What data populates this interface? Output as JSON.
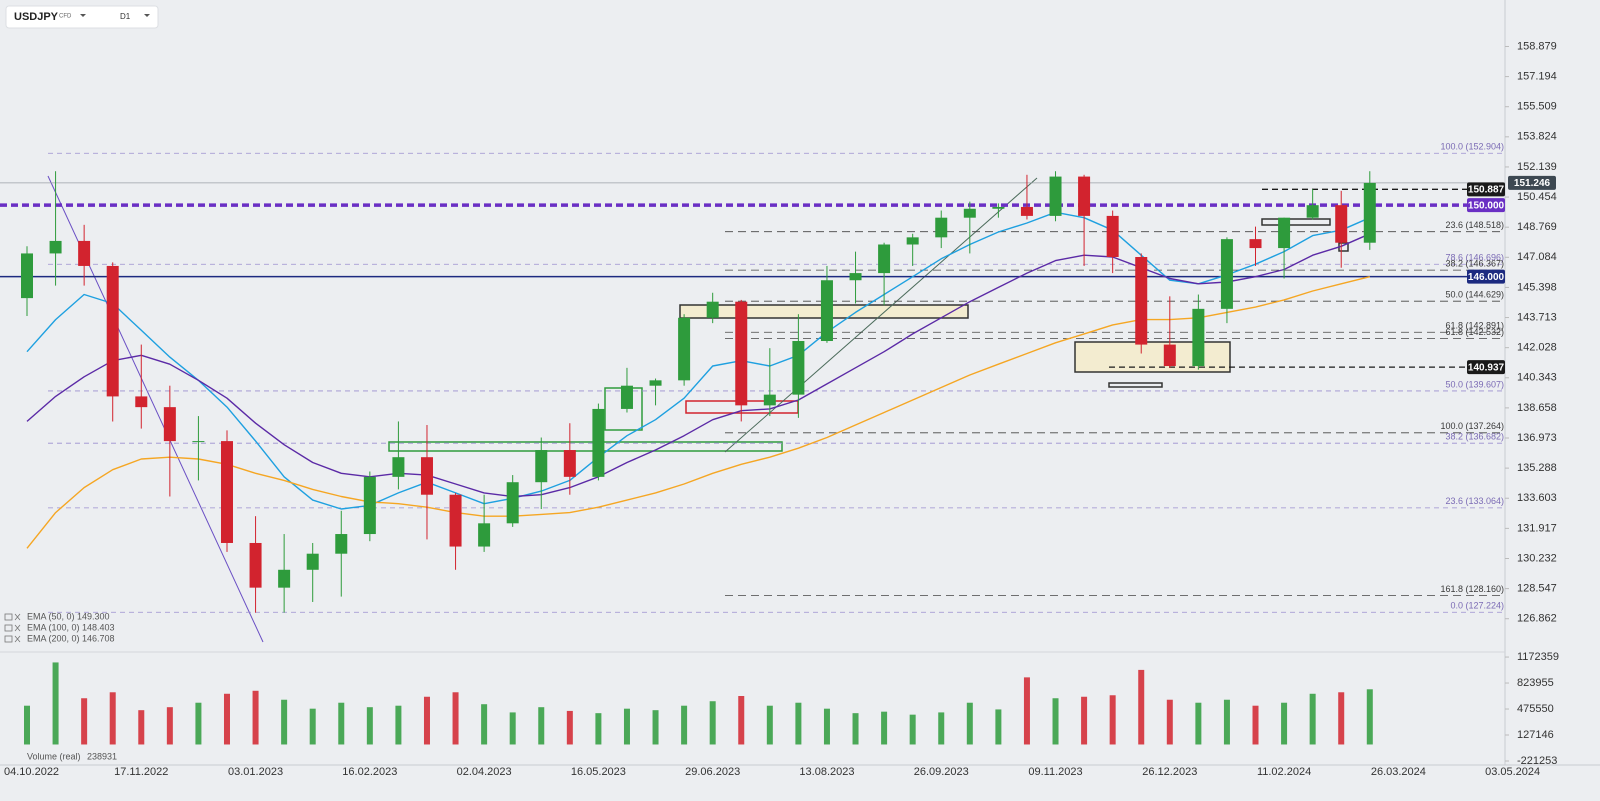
{
  "header": {
    "symbol": "USDJPY",
    "instrument_type": "CFD",
    "timeframe": "D1"
  },
  "chart_data": {
    "type": "candlestick",
    "categories": [
      "04.10.2022",
      null,
      null,
      null,
      "17.11.2022",
      null,
      null,
      null,
      "03.01.2023",
      null,
      null,
      null,
      "16.02.2023",
      null,
      null,
      null,
      "02.04.2023",
      null,
      null,
      null,
      "16.05.2023",
      null,
      null,
      null,
      "29.06.2023",
      null,
      null,
      null,
      "13.08.2023",
      null,
      null,
      null,
      "26.09.2023",
      null,
      null,
      null,
      "09.11.2023",
      null,
      null,
      null,
      "26.12.2023",
      null,
      null,
      null,
      "11.02.2024",
      null,
      null,
      null,
      "26.03.2024",
      null,
      null,
      null,
      "03.05.2024"
    ],
    "open": [
      144.8,
      147.3,
      148.0,
      146.6,
      139.3,
      138.7,
      136.8,
      136.8,
      131.1,
      128.6,
      129.6,
      130.5,
      131.6,
      134.8,
      135.9,
      133.8,
      130.9,
      132.2,
      134.5,
      136.3,
      134.8,
      138.6,
      139.9,
      140.2,
      143.7,
      144.6,
      138.8,
      139.4,
      142.4,
      145.8,
      146.2,
      147.8,
      148.2,
      149.3,
      149.8,
      149.9,
      149.4,
      151.6,
      149.4,
      147.1,
      142.2,
      141.0,
      144.2,
      148.1,
      147.6,
      149.3,
      150.0,
      147.9,
      null,
      null,
      null,
      null,
      null
    ],
    "high": [
      147.7,
      151.9,
      148.9,
      146.8,
      142.2,
      139.9,
      138.2,
      137.4,
      132.6,
      131.6,
      131.1,
      132.9,
      135.1,
      137.9,
      137.7,
      133.9,
      133.8,
      134.9,
      137.0,
      137.8,
      138.9,
      140.9,
      140.3,
      143.9,
      145.1,
      144.7,
      142.0,
      143.9,
      146.6,
      147.4,
      147.9,
      148.4,
      149.7,
      150.2,
      150.1,
      151.7,
      151.9,
      151.7,
      149.7,
      147.3,
      144.9,
      145.0,
      148.2,
      148.8,
      149.3,
      150.9,
      150.8,
      151.9,
      null,
      null,
      null,
      null,
      null
    ],
    "low": [
      143.8,
      145.5,
      145.5,
      137.9,
      137.5,
      133.7,
      134.6,
      130.6,
      127.2,
      127.2,
      127.8,
      128.1,
      131.2,
      134.1,
      131.3,
      129.6,
      130.6,
      132.0,
      133.0,
      133.8,
      134.6,
      138.4,
      138.8,
      139.9,
      143.4,
      137.9,
      138.2,
      138.1,
      142.3,
      144.5,
      144.4,
      146.6,
      147.6,
      147.3,
      149.3,
      149.2,
      149.1,
      146.6,
      146.2,
      141.7,
      140.9,
      140.8,
      143.4,
      146.6,
      145.9,
      149.2,
      146.5,
      147.5,
      null,
      null,
      null,
      null,
      null
    ],
    "close": [
      147.3,
      148.0,
      146.6,
      139.3,
      138.7,
      136.8,
      136.8,
      131.1,
      128.6,
      129.6,
      130.5,
      131.6,
      134.8,
      135.9,
      133.8,
      130.9,
      132.2,
      134.5,
      136.3,
      134.8,
      138.6,
      139.9,
      140.2,
      143.7,
      144.6,
      138.8,
      139.4,
      142.4,
      145.8,
      146.2,
      147.8,
      148.2,
      149.3,
      149.8,
      149.9,
      149.4,
      151.6,
      149.4,
      147.1,
      142.2,
      141.0,
      144.2,
      148.1,
      147.6,
      149.3,
      150.0,
      147.9,
      151.246,
      null,
      null,
      null,
      null,
      null
    ],
    "up_color": "#2e9b3c",
    "down_color": "#d2232e",
    "series": [
      {
        "name": "EMA (50, 0) 149.300",
        "color": "#1ea0e0",
        "values": [
          141.8,
          143.6,
          145.0,
          144.5,
          143.0,
          141.5,
          140.2,
          138.7,
          136.8,
          134.8,
          133.5,
          133.0,
          133.2,
          133.9,
          134.5,
          133.9,
          133.3,
          133.6,
          134.0,
          134.6,
          135.9,
          137.1,
          138.0,
          139.2,
          141.0,
          141.3,
          141.0,
          141.6,
          142.9,
          144.0,
          145.0,
          146.0,
          147.0,
          147.8,
          148.5,
          149.0,
          149.6,
          149.3,
          148.6,
          147.2,
          145.8,
          145.6,
          146.1,
          146.7,
          147.4,
          148.3,
          148.6,
          149.3,
          null,
          null,
          null,
          null,
          null
        ]
      },
      {
        "name": "EMA (100, 0) 148.403",
        "color": "#5b2aa6",
        "values": [
          137.9,
          139.3,
          140.4,
          141.3,
          141.6,
          141.1,
          140.2,
          139.2,
          137.8,
          136.6,
          135.6,
          135.0,
          134.8,
          135.0,
          134.9,
          134.4,
          133.9,
          133.7,
          133.8,
          134.2,
          134.8,
          135.6,
          136.3,
          137.1,
          138.0,
          138.5,
          138.6,
          139.1,
          140.0,
          140.9,
          141.8,
          142.8,
          143.7,
          144.6,
          145.4,
          146.2,
          146.9,
          147.2,
          147.1,
          146.5,
          145.9,
          145.6,
          145.7,
          146.0,
          146.4,
          147.2,
          147.7,
          148.4,
          null,
          null,
          null,
          null,
          null
        ]
      },
      {
        "name": "EMA (200, 0) 146.708",
        "color": "#f5a623",
        "values": [
          130.8,
          132.8,
          134.2,
          135.2,
          135.8,
          135.9,
          135.8,
          135.5,
          135.0,
          134.6,
          134.1,
          133.7,
          133.4,
          133.3,
          133.1,
          132.8,
          132.6,
          132.6,
          132.7,
          132.8,
          133.1,
          133.5,
          133.9,
          134.4,
          135.0,
          135.5,
          135.9,
          136.4,
          137.0,
          137.7,
          138.4,
          139.1,
          139.8,
          140.5,
          141.1,
          141.7,
          142.3,
          142.8,
          143.3,
          143.6,
          143.6,
          143.7,
          144.0,
          144.3,
          144.7,
          145.2,
          145.6,
          146.0,
          null,
          null,
          null,
          null,
          null
        ]
      }
    ],
    "ylim": [
      125.0,
      161.2
    ],
    "yticks": [
      158.879,
      157.194,
      155.509,
      153.824,
      152.139,
      150.454,
      148.769,
      147.084,
      145.398,
      143.713,
      142.028,
      140.343,
      138.658,
      136.973,
      135.288,
      133.603,
      131.917,
      130.232,
      128.547,
      126.862
    ],
    "price_lines": [
      {
        "value": 151.246,
        "color": "#3d4852",
        "style": "solid",
        "label_position": "axis"
      },
      {
        "value": 150.887,
        "color": "#1a1a1a",
        "style": "dashed",
        "label_position": "inside"
      },
      {
        "value": {
          "value": 150,
          "label": "150.000"
        },
        "color": "#6a2fc4",
        "style": "bold-dashed",
        "label_position": "inside"
      },
      {
        "value": {
          "value": 146,
          "label": "146.000"
        },
        "color": "#1c2a80",
        "style": "solid",
        "label_position": "inside"
      },
      {
        "value": 140.937,
        "color": "#1a1a1a",
        "style": "dashed",
        "label_position": "inside"
      }
    ],
    "fib_sets": [
      {
        "color": "#7b6bb5",
        "levels": [
          {
            "label": "100.0 (152.904)",
            "value": 152.904
          },
          {
            "label": "78.6 (146.696)",
            "value": 146.696
          },
          {
            "label": "50.0 (139.607)",
            "value": 139.607
          },
          {
            "label": "38.2 (136.682)",
            "value": 136.682
          },
          {
            "label": "23.6 (133.064)",
            "value": 133.064
          },
          {
            "label": "0.0 (127.224)",
            "value": 127.224
          }
        ]
      },
      {
        "color": "#3a3a3a",
        "levels": [
          {
            "label": "23.6 (148.518)",
            "value": 148.518
          },
          {
            "label": "38.2 (146.367)",
            "value": 146.367
          },
          {
            "label": "50.0 (144.629)",
            "value": 144.629
          },
          {
            "label": "61.8 (142.891)",
            "value": 142.891
          },
          {
            "label": "61.8 (142.532)",
            "value": 142.532
          },
          {
            "label": "100.0 (137.264)",
            "value": 137.264
          },
          {
            "label": "161.8 (128.160)",
            "value": 128.16
          }
        ]
      }
    ],
    "volume": {
      "name": "Volume (real)",
      "last": 238931,
      "values": [
        520000,
        1100000,
        620000,
        700000,
        460000,
        500000,
        560000,
        680000,
        720000,
        600000,
        480000,
        560000,
        500000,
        520000,
        640000,
        700000,
        540000,
        430000,
        500000,
        450000,
        420000,
        480000,
        460000,
        520000,
        580000,
        650000,
        520000,
        560000,
        480000,
        420000,
        440000,
        400000,
        430000,
        560000,
        470000,
        900000,
        620000,
        640000,
        660000,
        1000000,
        600000,
        560000,
        600000,
        520000,
        560000,
        680000,
        700000,
        740000,
        null,
        null,
        null,
        null,
        null
      ],
      "ylim": [
        -275000,
        1240000
      ],
      "yticks": [
        1172359,
        823955,
        475550,
        127146,
        -221253
      ]
    }
  }
}
